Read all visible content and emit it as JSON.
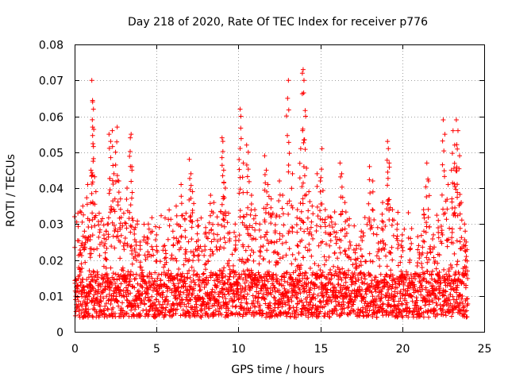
{
  "chart_data": {
    "type": "scatter",
    "title": "Day 218 of 2020, Rate Of TEC Index for receiver p776",
    "xlabel": "GPS time / hours",
    "ylabel": "ROTI / TECUs",
    "xlim": [
      0,
      25
    ],
    "ylim": [
      0,
      0.08
    ],
    "xticks": [
      0,
      5,
      10,
      15,
      20,
      25
    ],
    "xtick_labels": [
      "0",
      "5",
      "10",
      "15",
      "20",
      "25"
    ],
    "yticks": [
      0,
      0.01,
      0.02,
      0.03,
      0.04,
      0.05,
      0.06,
      0.07,
      0.08
    ],
    "ytick_labels": [
      "0",
      "0.01",
      "0.02",
      "0.03",
      "0.04",
      "0.05",
      "0.06",
      "0.07",
      "0.08"
    ],
    "grid": true,
    "marker": "+",
    "color": "#ff0000",
    "x_data_range": [
      0,
      24
    ],
    "baseline_band": [
      0.004,
      0.016
    ],
    "series": [
      {
        "name": "p776 ROTI",
        "points": [
          [
            0.2,
            0.033
          ],
          [
            0.4,
            0.024
          ],
          [
            0.5,
            0.035
          ],
          [
            0.6,
            0.028
          ],
          [
            0.8,
            0.041
          ],
          [
            0.9,
            0.031
          ],
          [
            1.0,
            0.045
          ],
          [
            1.05,
            0.07
          ],
          [
            1.1,
            0.064
          ],
          [
            1.15,
            0.062
          ],
          [
            1.1,
            0.057
          ],
          [
            1.3,
            0.039
          ],
          [
            1.5,
            0.033
          ],
          [
            1.8,
            0.026
          ],
          [
            2.0,
            0.03
          ],
          [
            2.1,
            0.055
          ],
          [
            2.2,
            0.053
          ],
          [
            2.3,
            0.056
          ],
          [
            2.4,
            0.044
          ],
          [
            2.5,
            0.05
          ],
          [
            2.6,
            0.057
          ],
          [
            2.7,
            0.042
          ],
          [
            2.8,
            0.037
          ],
          [
            3.0,
            0.033
          ],
          [
            3.2,
            0.04
          ],
          [
            3.4,
            0.054
          ],
          [
            3.45,
            0.055
          ],
          [
            3.5,
            0.045
          ],
          [
            3.7,
            0.029
          ],
          [
            4.0,
            0.025
          ],
          [
            4.5,
            0.03
          ],
          [
            5.0,
            0.027
          ],
          [
            5.5,
            0.024
          ],
          [
            6.0,
            0.028
          ],
          [
            6.2,
            0.035
          ],
          [
            6.5,
            0.041
          ],
          [
            6.8,
            0.033
          ],
          [
            7.0,
            0.048
          ],
          [
            7.1,
            0.044
          ],
          [
            7.2,
            0.039
          ],
          [
            7.5,
            0.031
          ],
          [
            8.0,
            0.029
          ],
          [
            8.3,
            0.038
          ],
          [
            8.5,
            0.036
          ],
          [
            8.7,
            0.032
          ],
          [
            9.0,
            0.054
          ],
          [
            9.05,
            0.053
          ],
          [
            9.1,
            0.045
          ],
          [
            9.2,
            0.04
          ],
          [
            9.4,
            0.033
          ],
          [
            9.8,
            0.03
          ],
          [
            10.1,
            0.062
          ],
          [
            10.15,
            0.06
          ],
          [
            10.3,
            0.047
          ],
          [
            10.5,
            0.052
          ],
          [
            10.6,
            0.05
          ],
          [
            10.8,
            0.038
          ],
          [
            11.0,
            0.034
          ],
          [
            11.3,
            0.03
          ],
          [
            11.6,
            0.049
          ],
          [
            11.7,
            0.045
          ],
          [
            11.8,
            0.041
          ],
          [
            12.0,
            0.037
          ],
          [
            12.3,
            0.032
          ],
          [
            12.5,
            0.042
          ],
          [
            12.7,
            0.038
          ],
          [
            13.0,
            0.065
          ],
          [
            13.05,
            0.07
          ],
          [
            13.3,
            0.044
          ],
          [
            13.6,
            0.034
          ],
          [
            13.8,
            0.051
          ],
          [
            13.9,
            0.072
          ],
          [
            13.95,
            0.073
          ],
          [
            14.0,
            0.07
          ],
          [
            14.1,
            0.06
          ],
          [
            14.3,
            0.039
          ],
          [
            14.5,
            0.035
          ],
          [
            14.8,
            0.044
          ],
          [
            15.0,
            0.042
          ],
          [
            15.1,
            0.051
          ],
          [
            15.3,
            0.034
          ],
          [
            15.6,
            0.032
          ],
          [
            15.9,
            0.03
          ],
          [
            16.2,
            0.047
          ],
          [
            16.3,
            0.044
          ],
          [
            16.5,
            0.036
          ],
          [
            16.8,
            0.025
          ],
          [
            17.2,
            0.024
          ],
          [
            17.5,
            0.028
          ],
          [
            18.0,
            0.046
          ],
          [
            18.2,
            0.042
          ],
          [
            18.5,
            0.029
          ],
          [
            18.8,
            0.036
          ],
          [
            19.1,
            0.053
          ],
          [
            19.15,
            0.051
          ],
          [
            19.2,
            0.047
          ],
          [
            19.4,
            0.034
          ],
          [
            19.7,
            0.03
          ],
          [
            20.0,
            0.027
          ],
          [
            20.5,
            0.026
          ],
          [
            21.0,
            0.024
          ],
          [
            21.3,
            0.034
          ],
          [
            21.5,
            0.047
          ],
          [
            21.6,
            0.042
          ],
          [
            21.9,
            0.027
          ],
          [
            22.2,
            0.031
          ],
          [
            22.5,
            0.059
          ],
          [
            22.6,
            0.055
          ],
          [
            22.8,
            0.041
          ],
          [
            23.0,
            0.045
          ],
          [
            23.1,
            0.056
          ],
          [
            23.2,
            0.052
          ],
          [
            23.3,
            0.059
          ],
          [
            23.4,
            0.056
          ],
          [
            23.5,
            0.049
          ],
          [
            23.6,
            0.036
          ],
          [
            23.8,
            0.03
          ],
          [
            23.9,
            0.025
          ]
        ]
      }
    ]
  }
}
